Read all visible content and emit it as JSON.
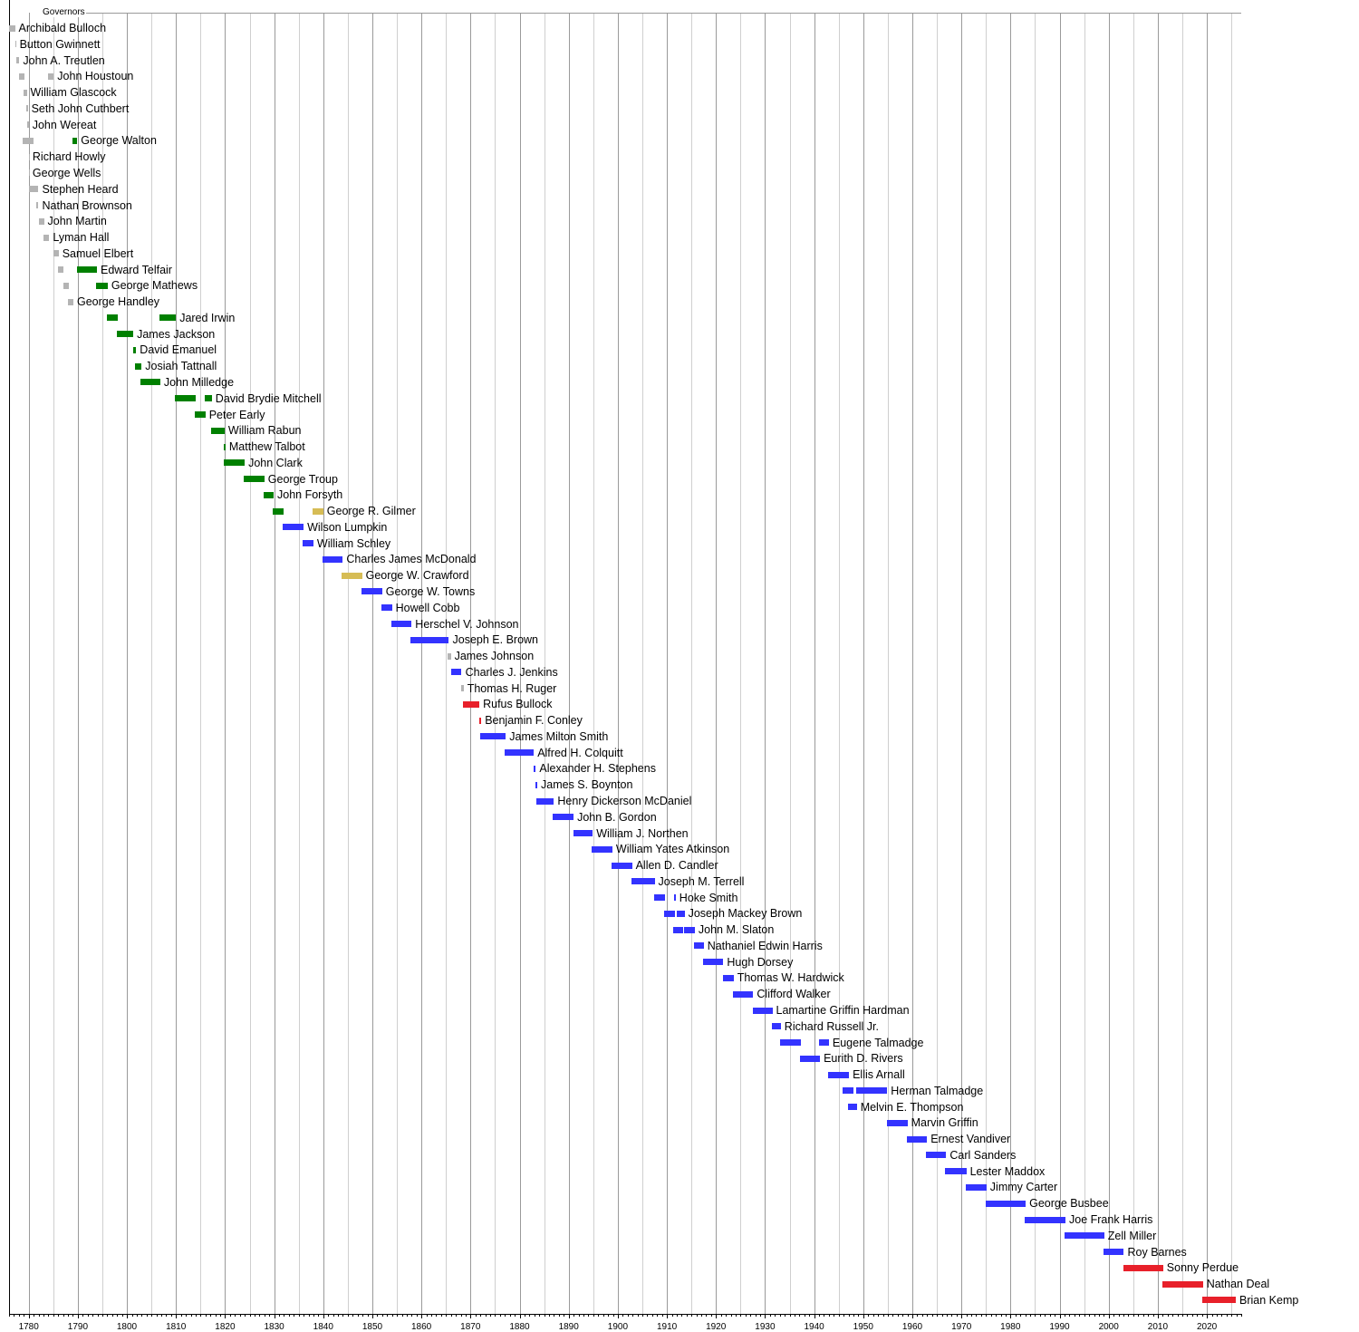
{
  "chart_data": {
    "type": "bar",
    "orientation": "horizontal-range",
    "title": "Governors",
    "xlim": [
      1776,
      2027
    ],
    "x_ticks": [
      1780,
      1790,
      1800,
      1810,
      1820,
      1830,
      1840,
      1850,
      1860,
      1870,
      1880,
      1890,
      1900,
      1910,
      1920,
      1930,
      1940,
      1950,
      1960,
      1970,
      1980,
      1990,
      2000,
      2010,
      2020
    ],
    "grid": true,
    "colors": {
      "gray": "#b4b4b4",
      "green": "#008000",
      "gold": "#d6bc55",
      "blue": "#3333ff",
      "red": "#e8202a"
    },
    "governors": [
      {
        "name": "Archibald Bulloch",
        "terms": [
          [
            1776.0,
            1777.2,
            "gray"
          ]
        ]
      },
      {
        "name": "Button Gwinnett",
        "terms": [
          [
            1777.2,
            1777.4,
            "gray"
          ]
        ]
      },
      {
        "name": "John A. Treutlen",
        "terms": [
          [
            1777.4,
            1778.1,
            "gray"
          ]
        ]
      },
      {
        "name": "John Houstoun",
        "terms": [
          [
            1778.0,
            1779.2,
            "gray"
          ],
          [
            1784.0,
            1785.1,
            "gray"
          ]
        ]
      },
      {
        "name": "William Glascock",
        "terms": [
          [
            1779.0,
            1779.6,
            "gray"
          ]
        ]
      },
      {
        "name": "Seth John Cuthbert",
        "terms": [
          [
            1779.5,
            1779.8,
            "gray"
          ]
        ]
      },
      {
        "name": "John Wereat",
        "terms": [
          [
            1779.6,
            1780.0,
            "gray"
          ]
        ]
      },
      {
        "name": "George Walton",
        "terms": [
          [
            1778.8,
            1781.0,
            "gray"
          ],
          [
            1789.0,
            1789.9,
            "green"
          ]
        ]
      },
      {
        "name": "Richard Howly",
        "terms": [
          [
            1780.0,
            1780.05,
            "gray"
          ]
        ]
      },
      {
        "name": "George Wells",
        "terms": [
          [
            1780.0,
            1780.05,
            "gray"
          ]
        ]
      },
      {
        "name": "Stephen Heard",
        "terms": [
          [
            1780.1,
            1782.0,
            "gray"
          ]
        ]
      },
      {
        "name": "Nathan Brownson",
        "terms": [
          [
            1781.6,
            1782.0,
            "gray"
          ]
        ]
      },
      {
        "name": "John Martin",
        "terms": [
          [
            1782.0,
            1783.1,
            "gray"
          ]
        ]
      },
      {
        "name": "Lyman Hall",
        "terms": [
          [
            1783.0,
            1784.2,
            "gray"
          ]
        ]
      },
      {
        "name": "Samuel Elbert",
        "terms": [
          [
            1785.0,
            1786.1,
            "gray"
          ]
        ]
      },
      {
        "name": "Edward Telfair",
        "terms": [
          [
            1786.0,
            1787.1,
            "gray"
          ],
          [
            1789.8,
            1793.9,
            "green"
          ]
        ]
      },
      {
        "name": "George Mathews",
        "terms": [
          [
            1787.0,
            1788.1,
            "gray"
          ],
          [
            1793.8,
            1796.1,
            "green"
          ]
        ]
      },
      {
        "name": "George Handley",
        "terms": [
          [
            1788.0,
            1789.1,
            "gray"
          ]
        ]
      },
      {
        "name": "Jared Irwin",
        "terms": [
          [
            1796.0,
            1798.2,
            "green"
          ],
          [
            1806.7,
            1810.0,
            "green"
          ]
        ]
      },
      {
        "name": "James Jackson",
        "terms": [
          [
            1798.0,
            1801.3,
            "green"
          ]
        ]
      },
      {
        "name": "David Emanuel",
        "terms": [
          [
            1801.2,
            1801.9,
            "green"
          ]
        ]
      },
      {
        "name": "Josiah Tattnall",
        "terms": [
          [
            1801.7,
            1803.0,
            "green"
          ]
        ]
      },
      {
        "name": "John Milledge",
        "terms": [
          [
            1802.8,
            1806.8,
            "green"
          ]
        ]
      },
      {
        "name": "David Brydie Mitchell",
        "terms": [
          [
            1809.8,
            1814.0,
            "green"
          ],
          [
            1815.9,
            1817.3,
            "green"
          ]
        ]
      },
      {
        "name": "Peter Early",
        "terms": [
          [
            1813.8,
            1816.0,
            "green"
          ]
        ]
      },
      {
        "name": "William Rabun",
        "terms": [
          [
            1817.2,
            1819.9,
            "green"
          ]
        ]
      },
      {
        "name": "Matthew Talbot",
        "terms": [
          [
            1819.8,
            1820.1,
            "green"
          ]
        ]
      },
      {
        "name": "John Clark",
        "terms": [
          [
            1819.8,
            1824.0,
            "green"
          ]
        ]
      },
      {
        "name": "George Troup",
        "terms": [
          [
            1823.8,
            1828.0,
            "green"
          ]
        ]
      },
      {
        "name": "John Forsyth",
        "terms": [
          [
            1827.9,
            1829.9,
            "green"
          ]
        ]
      },
      {
        "name": "George R. Gilmer",
        "terms": [
          [
            1829.7,
            1831.9,
            "green"
          ],
          [
            1837.8,
            1840.0,
            "gold"
          ]
        ]
      },
      {
        "name": "Wilson Lumpkin",
        "terms": [
          [
            1831.7,
            1836.0,
            "blue"
          ]
        ]
      },
      {
        "name": "William Schley",
        "terms": [
          [
            1835.8,
            1838.0,
            "blue"
          ]
        ]
      },
      {
        "name": "Charles James McDonald",
        "terms": [
          [
            1839.8,
            1844.0,
            "blue"
          ]
        ]
      },
      {
        "name": "George W. Crawford",
        "terms": [
          [
            1843.8,
            1847.9,
            "gold"
          ]
        ]
      },
      {
        "name": "George W. Towns",
        "terms": [
          [
            1847.7,
            1852.0,
            "blue"
          ]
        ]
      },
      {
        "name": "Howell Cobb",
        "terms": [
          [
            1851.8,
            1854.0,
            "blue"
          ]
        ]
      },
      {
        "name": "Herschel V. Johnson",
        "terms": [
          [
            1853.8,
            1858.0,
            "blue"
          ]
        ]
      },
      {
        "name": "Joseph E. Brown",
        "terms": [
          [
            1857.8,
            1865.6,
            "blue"
          ]
        ]
      },
      {
        "name": "James Johnson",
        "terms": [
          [
            1865.4,
            1866.0,
            "gray"
          ]
        ]
      },
      {
        "name": "Charles J. Jenkins",
        "terms": [
          [
            1866.0,
            1868.2,
            "blue"
          ]
        ]
      },
      {
        "name": "Thomas H. Ruger",
        "terms": [
          [
            1868.0,
            1868.6,
            "gray"
          ]
        ]
      },
      {
        "name": "Rufus Bullock",
        "terms": [
          [
            1868.4,
            1871.8,
            "red"
          ]
        ]
      },
      {
        "name": "Benjamin F. Conley",
        "terms": [
          [
            1871.7,
            1872.2,
            "red"
          ]
        ]
      },
      {
        "name": "James Milton Smith",
        "terms": [
          [
            1872.0,
            1877.2,
            "blue"
          ]
        ]
      },
      {
        "name": "Alfred H. Colquitt",
        "terms": [
          [
            1877.0,
            1882.9,
            "blue"
          ]
        ]
      },
      {
        "name": "Alexander H. Stephens",
        "terms": [
          [
            1882.8,
            1883.3,
            "blue"
          ]
        ]
      },
      {
        "name": "James S. Boynton",
        "terms": [
          [
            1883.2,
            1883.6,
            "blue"
          ]
        ]
      },
      {
        "name": "Henry Dickerson McDaniel",
        "terms": [
          [
            1883.4,
            1887.0,
            "blue"
          ]
        ]
      },
      {
        "name": "John B. Gordon",
        "terms": [
          [
            1886.8,
            1891.0,
            "blue"
          ]
        ]
      },
      {
        "name": "William J. Northen",
        "terms": [
          [
            1890.9,
            1894.9,
            "blue"
          ]
        ]
      },
      {
        "name": "William Yates Atkinson",
        "terms": [
          [
            1894.7,
            1898.9,
            "blue"
          ]
        ]
      },
      {
        "name": "Allen D. Candler",
        "terms": [
          [
            1898.7,
            1902.9,
            "blue"
          ]
        ]
      },
      {
        "name": "Joseph M. Terrell",
        "terms": [
          [
            1902.8,
            1907.5,
            "blue"
          ]
        ]
      },
      {
        "name": "Hoke Smith",
        "terms": [
          [
            1907.4,
            1909.6,
            "blue"
          ],
          [
            1911.4,
            1911.8,
            "blue"
          ]
        ]
      },
      {
        "name": "Joseph Mackey Brown",
        "terms": [
          [
            1909.4,
            1911.6,
            "blue"
          ],
          [
            1912.0,
            1913.6,
            "blue"
          ]
        ]
      },
      {
        "name": "John M. Slaton",
        "terms": [
          [
            1911.2,
            1913.3,
            "blue"
          ],
          [
            1913.5,
            1915.7,
            "blue"
          ]
        ]
      },
      {
        "name": "Nathaniel Edwin Harris",
        "terms": [
          [
            1915.5,
            1917.5,
            "blue"
          ]
        ]
      },
      {
        "name": "Hugh Dorsey",
        "terms": [
          [
            1917.3,
            1921.5,
            "blue"
          ]
        ]
      },
      {
        "name": "Thomas W. Hardwick",
        "terms": [
          [
            1921.4,
            1923.6,
            "blue"
          ]
        ]
      },
      {
        "name": "Clifford Walker",
        "terms": [
          [
            1923.4,
            1927.6,
            "blue"
          ]
        ]
      },
      {
        "name": "Lamartine Griffin Hardman",
        "terms": [
          [
            1927.5,
            1931.5,
            "blue"
          ]
        ]
      },
      {
        "name": "Richard Russell Jr.",
        "terms": [
          [
            1931.3,
            1933.2,
            "blue"
          ]
        ]
      },
      {
        "name": "Eugene Talmadge",
        "terms": [
          [
            1933.0,
            1937.3,
            "blue"
          ],
          [
            1940.9,
            1943.0,
            "blue"
          ]
        ]
      },
      {
        "name": "Eurith D. Rivers",
        "terms": [
          [
            1937.1,
            1941.2,
            "blue"
          ]
        ]
      },
      {
        "name": "Ellis Arnall",
        "terms": [
          [
            1942.9,
            1947.1,
            "blue"
          ]
        ]
      },
      {
        "name": "Herman Talmadge",
        "terms": [
          [
            1945.8,
            1948.0,
            "blue"
          ],
          [
            1948.6,
            1954.9,
            "blue"
          ]
        ]
      },
      {
        "name": "Melvin E. Thompson",
        "terms": [
          [
            1946.9,
            1948.7,
            "blue"
          ]
        ]
      },
      {
        "name": "Marvin Griffin",
        "terms": [
          [
            1954.8,
            1959.0,
            "blue"
          ]
        ]
      },
      {
        "name": "Ernest Vandiver",
        "terms": [
          [
            1958.8,
            1963.0,
            "blue"
          ]
        ]
      },
      {
        "name": "Carl Sanders",
        "terms": [
          [
            1962.8,
            1966.9,
            "blue"
          ]
        ]
      },
      {
        "name": "Lester Maddox",
        "terms": [
          [
            1966.7,
            1971.0,
            "blue"
          ]
        ]
      },
      {
        "name": "Jimmy Carter",
        "terms": [
          [
            1970.9,
            1975.1,
            "blue"
          ]
        ]
      },
      {
        "name": "George Busbee",
        "terms": [
          [
            1975.0,
            1983.1,
            "blue"
          ]
        ]
      },
      {
        "name": "Joe Frank Harris",
        "terms": [
          [
            1982.9,
            1991.2,
            "blue"
          ]
        ]
      },
      {
        "name": "Zell Miller",
        "terms": [
          [
            1991.0,
            1999.1,
            "blue"
          ]
        ]
      },
      {
        "name": "Roy Barnes",
        "terms": [
          [
            1998.9,
            2003.1,
            "blue"
          ]
        ]
      },
      {
        "name": "Sonny Perdue",
        "terms": [
          [
            2003.0,
            2011.1,
            "red"
          ]
        ]
      },
      {
        "name": "Nathan Deal",
        "terms": [
          [
            2010.9,
            2019.2,
            "red"
          ]
        ]
      },
      {
        "name": "Brian Kemp",
        "terms": [
          [
            2019.0,
            2025.9,
            "red"
          ]
        ]
      }
    ]
  }
}
